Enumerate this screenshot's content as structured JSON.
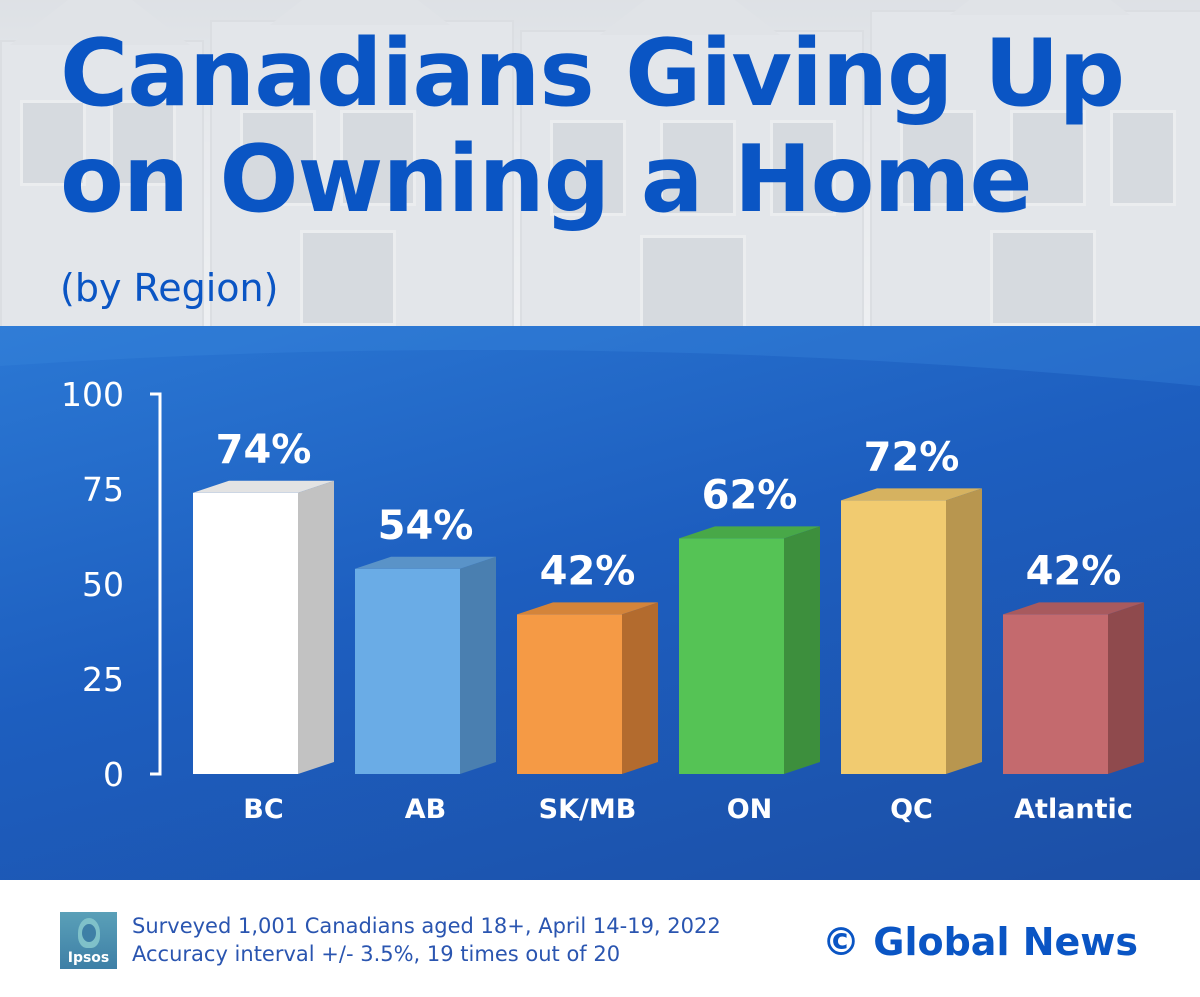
{
  "header": {
    "title_line1": "Canadians Giving Up",
    "title_line2": "on Owning a Home",
    "subtitle": "(by Region)"
  },
  "chart_data": {
    "type": "bar",
    "title": "Canadians Giving Up on Owning a Home",
    "subtitle": "(by Region)",
    "categories": [
      "BC",
      "AB",
      "SK/MB",
      "ON",
      "QC",
      "Atlantic"
    ],
    "values": [
      74,
      54,
      42,
      62,
      72,
      42
    ],
    "value_labels": [
      "74%",
      "54%",
      "42%",
      "62%",
      "72%",
      "42%"
    ],
    "yticks": [
      0,
      25,
      50,
      75,
      100
    ],
    "ylim": [
      0,
      100
    ],
    "xlabel": "",
    "ylabel": "",
    "grid": false,
    "legend": "none",
    "colors": {
      "front": [
        "#ffffff",
        "#6aace6",
        "#f59a45",
        "#55c355",
        "#f1cb70",
        "#c46a6e"
      ],
      "side": [
        "#c2c2c2",
        "#4a7fb0",
        "#b36b2e",
        "#3d8f3d",
        "#b8964f",
        "#8f4a4d"
      ],
      "top": [
        "#e3e3e3",
        "#5a93c8",
        "#d4843a",
        "#48a848",
        "#d6b260",
        "#a85a5e"
      ]
    }
  },
  "footer": {
    "logo_text": "Ipsos",
    "note_line1": "Surveyed 1,001 Canadians aged 18+, April 14-19, 2022",
    "note_line2": "Accuracy interval +/- 3.5%, 19 times out of 20",
    "credit": "© Global News"
  }
}
